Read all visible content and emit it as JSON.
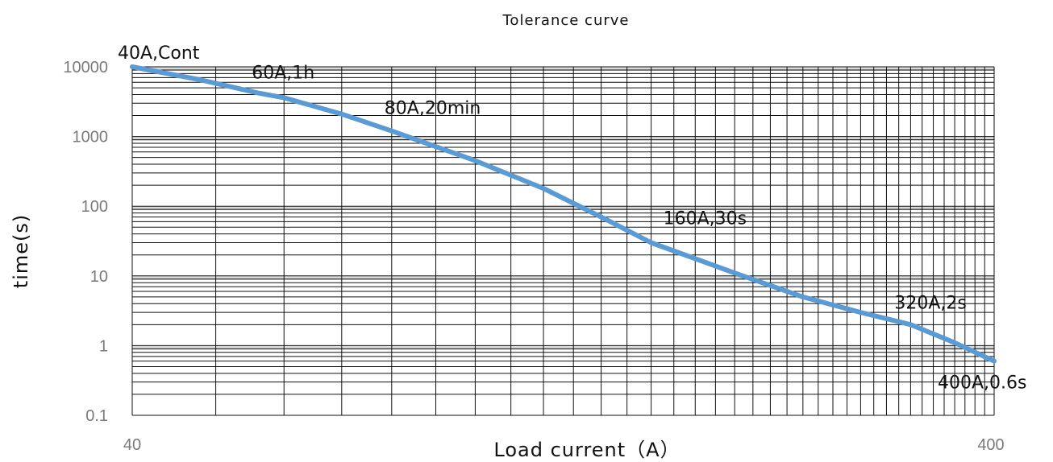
{
  "chart_data": {
    "type": "line",
    "title": "Tolerance curve",
    "xlabel": "Load current（A）",
    "ylabel": "time(s)",
    "x_scale": "log",
    "y_scale": "log",
    "xlim": [
      40,
      400
    ],
    "ylim": [
      0.1,
      10000
    ],
    "xticks": [
      "40",
      "400"
    ],
    "yticks": [
      "10000",
      "1000",
      "100",
      "10",
      "1",
      "0.1"
    ],
    "grid": true,
    "line_color": "#5b9bd5",
    "series": [
      {
        "x": [
          40,
          48,
          56,
          60,
          70,
          80,
          100,
          120,
          140,
          160,
          200,
          240,
          280,
          320,
          360,
          400
        ],
        "y": [
          10000,
          6500,
          4200,
          3600,
          2100,
          1200,
          450,
          180,
          70,
          30,
          11,
          5,
          3,
          2,
          1.1,
          0.6
        ]
      }
    ],
    "annotations": [
      {
        "text": "40A,Cont",
        "x": 40,
        "y": 10000
      },
      {
        "text": "60A,1h",
        "x": 60,
        "y": 3600
      },
      {
        "text": "80A,20min",
        "x": 80,
        "y": 1200
      },
      {
        "text": "160A,30s",
        "x": 160,
        "y": 30
      },
      {
        "text": "320A,2s",
        "x": 320,
        "y": 2
      },
      {
        "text": "400A,0.6s",
        "x": 400,
        "y": 0.6
      }
    ]
  }
}
